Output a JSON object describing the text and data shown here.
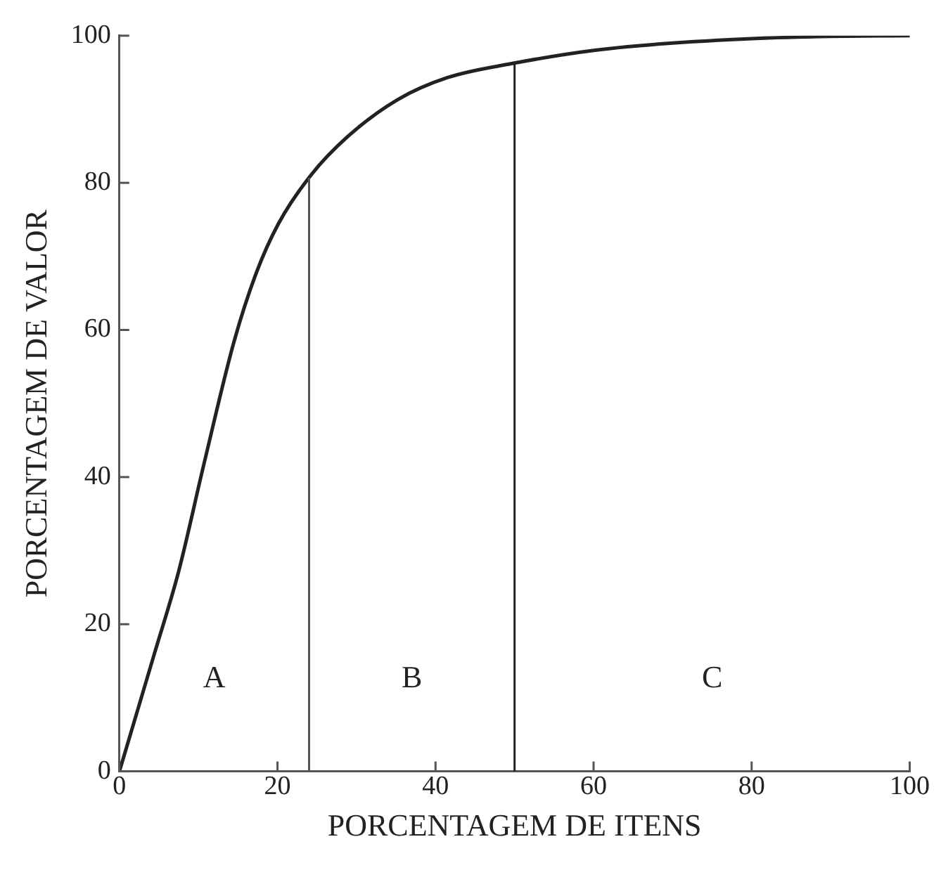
{
  "chart_data": {
    "type": "line",
    "xlabel": "PORCENTAGEM DE ITENS",
    "ylabel": "PORCENTAGEM DE VALOR",
    "x": [
      0,
      4.4,
      7.5,
      10.7,
      14.5,
      17.3,
      20.1,
      24.2,
      28.9,
      35.2,
      41.5,
      49.6,
      60,
      70,
      80,
      90,
      100
    ],
    "series": [
      {
        "color": "#222222",
        "values": [
          0,
          15.9,
          27.2,
          41.8,
          58.4,
          67.7,
          74.4,
          81,
          86.3,
          91.3,
          94.3,
          96.2,
          98,
          99,
          99.6,
          99.9,
          100
        ]
      }
    ],
    "xlim": [
      0,
      100
    ],
    "xticks": [
      0,
      20,
      40,
      60,
      80,
      100
    ],
    "ylim": [
      0,
      100
    ],
    "yticks": [
      0,
      20,
      40,
      60,
      80,
      100
    ],
    "ref_lines": [
      {
        "axis": "x",
        "value": 24,
        "color": "#555555"
      },
      {
        "axis": "x",
        "value": 50,
        "color": "#222222"
      }
    ],
    "annotations": [
      "A",
      "B",
      "C"
    ],
    "grid": false,
    "legend": false,
    "marker": "none",
    "line_style": "solid"
  }
}
